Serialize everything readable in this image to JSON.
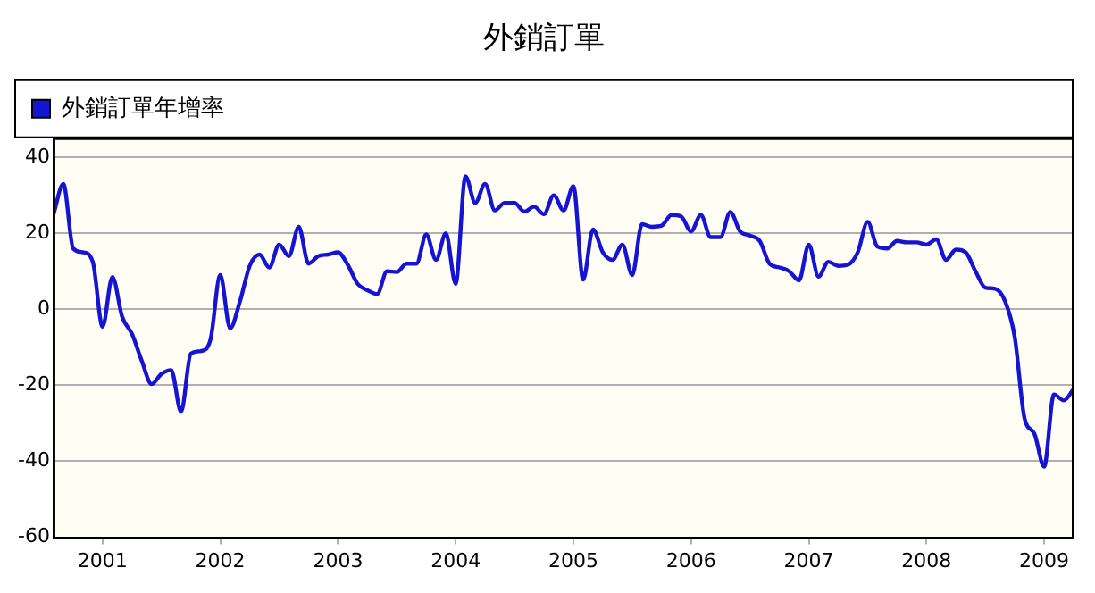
{
  "chart_data": {
    "type": "line",
    "title": "外銷訂單",
    "x": [
      "2000-08",
      "2000-09",
      "2000-10",
      "2000-11",
      "2000-12",
      "2001-01",
      "2001-02",
      "2001-03",
      "2001-04",
      "2001-05",
      "2001-06",
      "2001-07",
      "2001-08",
      "2001-09",
      "2001-10",
      "2001-11",
      "2001-12",
      "2002-01",
      "2002-02",
      "2002-03",
      "2002-04",
      "2002-05",
      "2002-06",
      "2002-07",
      "2002-08",
      "2002-09",
      "2002-10",
      "2002-11",
      "2002-12",
      "2003-01",
      "2003-02",
      "2003-03",
      "2003-04",
      "2003-05",
      "2003-06",
      "2003-07",
      "2003-08",
      "2003-09",
      "2003-10",
      "2003-11",
      "2003-12",
      "2004-01",
      "2004-02",
      "2004-03",
      "2004-04",
      "2004-05",
      "2004-06",
      "2004-07",
      "2004-08",
      "2004-09",
      "2004-10",
      "2004-11",
      "2004-12",
      "2005-01",
      "2005-02",
      "2005-03",
      "2005-04",
      "2005-05",
      "2005-06",
      "2005-07",
      "2005-08",
      "2005-09",
      "2005-10",
      "2005-11",
      "2005-12",
      "2006-01",
      "2006-02",
      "2006-03",
      "2006-04",
      "2006-05",
      "2006-06",
      "2006-07",
      "2006-08",
      "2006-09",
      "2006-10",
      "2006-11",
      "2006-12",
      "2007-01",
      "2007-02",
      "2007-03",
      "2007-04",
      "2007-05",
      "2007-06",
      "2007-07",
      "2007-08",
      "2007-09",
      "2007-10",
      "2007-11",
      "2007-12",
      "2008-01",
      "2008-02",
      "2008-03",
      "2008-04",
      "2008-05",
      "2008-06",
      "2008-07",
      "2008-08",
      "2008-09",
      "2008-10",
      "2008-11",
      "2008-12",
      "2009-01",
      "2009-02",
      "2009-03",
      "2009-04"
    ],
    "series": [
      {
        "name": "外銷訂單年增率",
        "color": "#1414d2",
        "values": [
          25,
          33,
          16,
          15,
          12.5,
          -4.6,
          8.5,
          -2,
          -6.5,
          -13.6,
          -19.7,
          -17,
          -16,
          -27,
          -11.7,
          -11,
          -8,
          9,
          -5,
          2,
          11.4,
          14.4,
          11,
          17,
          14,
          21.7,
          12,
          14,
          14.4,
          15,
          11.7,
          6.7,
          5,
          4,
          10,
          9.8,
          12,
          12,
          19.7,
          13,
          20,
          6.7,
          35,
          28,
          33,
          26,
          28,
          28,
          25.7,
          27,
          25,
          30,
          26,
          32.4,
          7.8,
          21,
          15,
          13,
          17,
          9,
          22.4,
          21.7,
          22,
          24.8,
          24.4,
          20.5,
          24.8,
          19,
          19,
          25.6,
          20.5,
          19.4,
          18,
          12,
          11,
          10,
          7.6,
          17,
          8.6,
          12.5,
          11.4,
          11.7,
          15,
          23,
          16.5,
          16,
          18,
          17.6,
          17.6,
          17,
          18.4,
          13,
          15.7,
          15,
          10,
          5.7,
          5.4,
          2.2,
          -7.3,
          -28.7,
          -32.7,
          -41.4,
          -22.4,
          -24,
          -21
        ]
      }
    ],
    "xlim": [
      "2000-08",
      "2009-04"
    ],
    "xticks": [
      "2001",
      "2002",
      "2003",
      "2004",
      "2005",
      "2006",
      "2007",
      "2008",
      "2009"
    ],
    "ylim": [
      -60,
      45
    ],
    "yticks": [
      -60,
      -40,
      -20,
      0,
      20,
      40
    ],
    "grid": "y",
    "legend": "top left",
    "marker": "none",
    "line_style": "solid"
  }
}
